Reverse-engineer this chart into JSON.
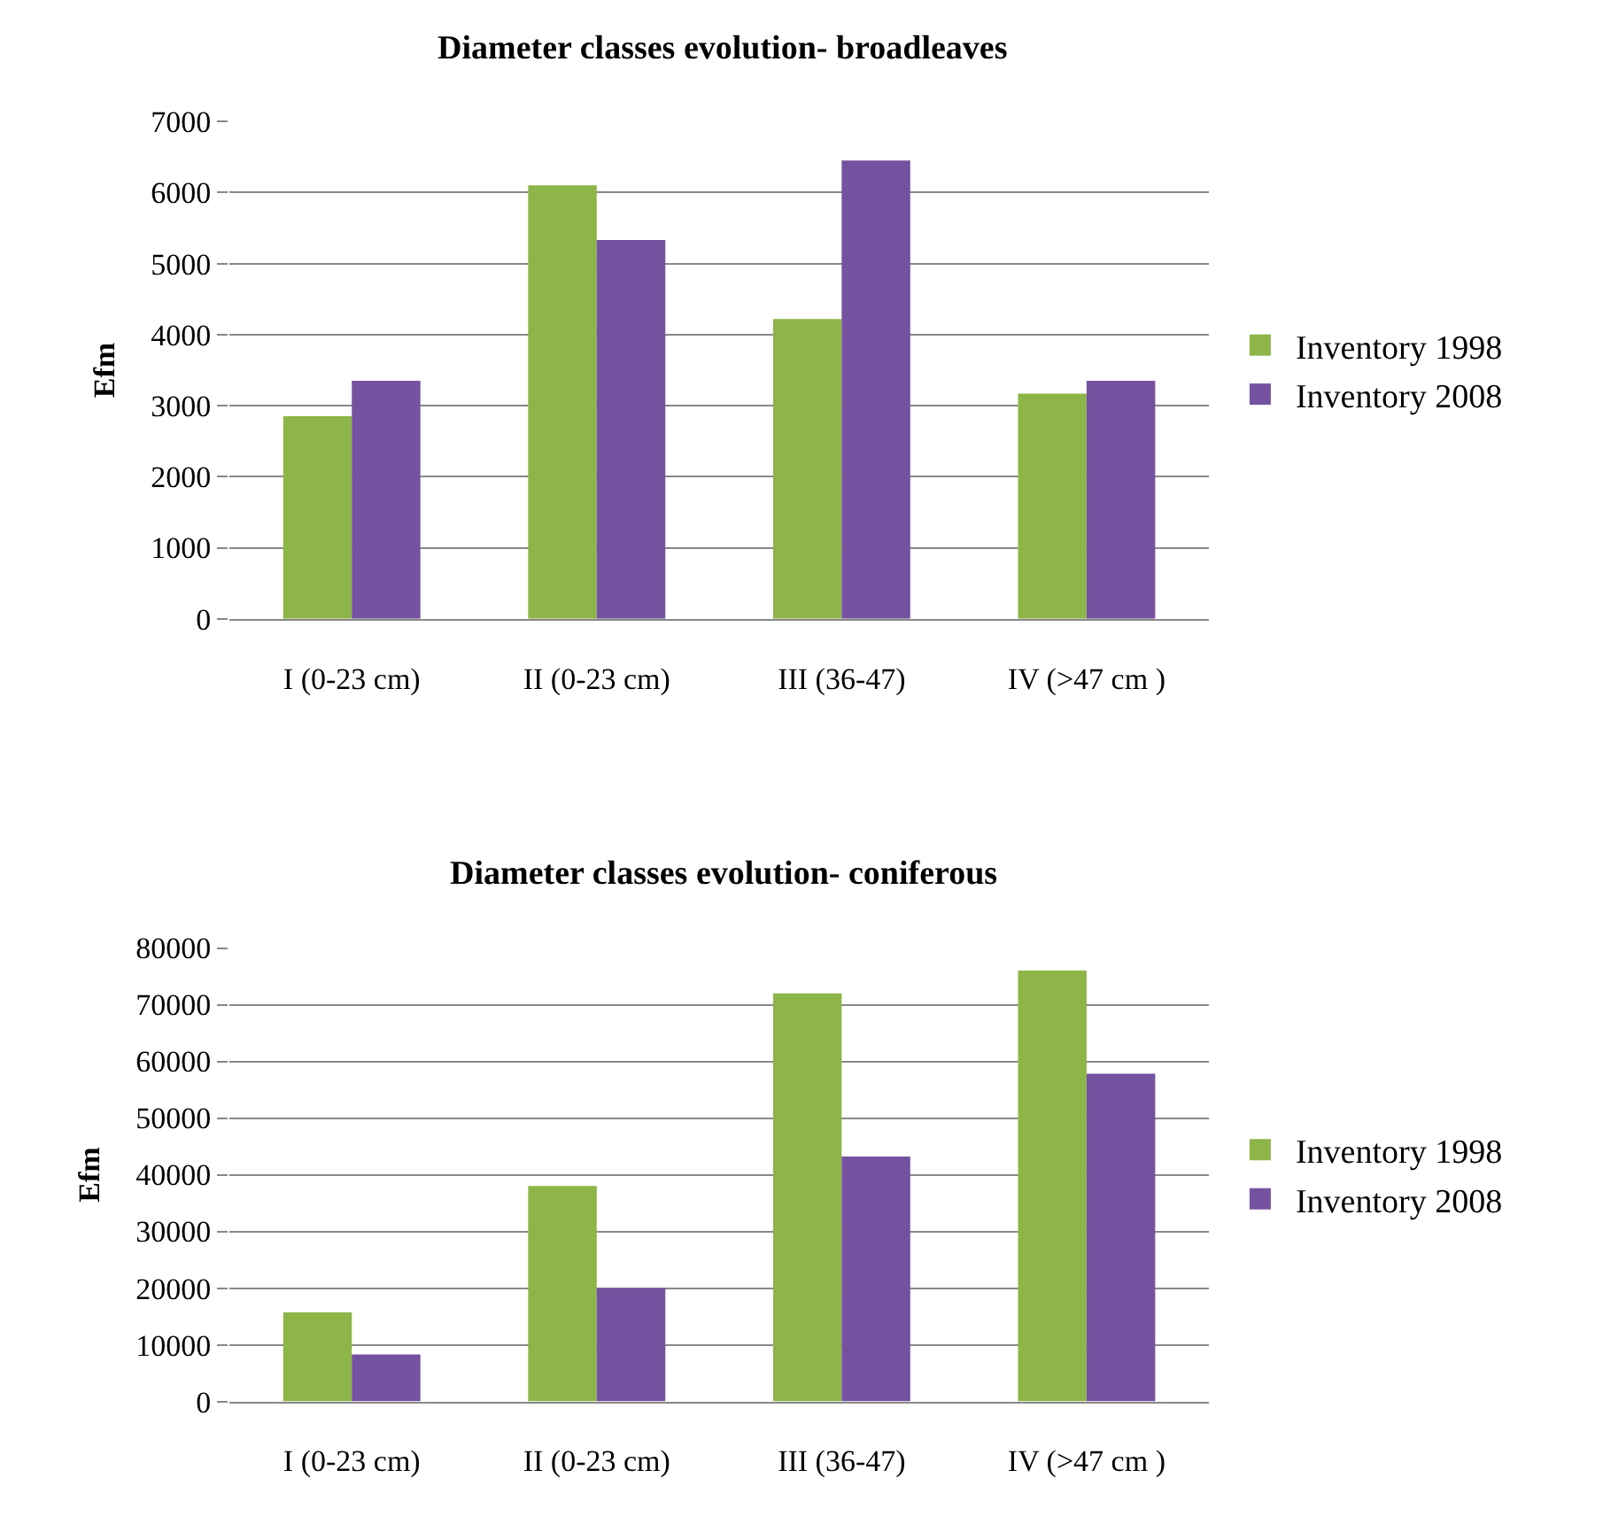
{
  "chart_data": [
    {
      "type": "bar",
      "title": "Diameter classes evolution- broadleaves",
      "ylabel": "Efm",
      "categories": [
        "I (0-23 cm)",
        "II (0-23 cm)",
        "III (36-47)",
        "IV (>47 cm )"
      ],
      "series": [
        {
          "name": "Inventory 1998",
          "color": "#8db548",
          "values": [
            2850,
            6100,
            4220,
            3170
          ]
        },
        {
          "name": "Inventory 2008",
          "color": "#7452a0",
          "values": [
            3350,
            5330,
            6450,
            3350
          ]
        }
      ],
      "ylim": [
        0,
        7000
      ],
      "yticks": [
        0,
        1000,
        2000,
        3000,
        4000,
        5000,
        6000,
        7000
      ],
      "grid": "y",
      "legend": "right"
    },
    {
      "type": "bar",
      "title": "Diameter classes evolution- coniferous",
      "ylabel": "Efm",
      "categories": [
        "I (0-23 cm)",
        "II (0-23 cm)",
        "III (36-47)",
        "IV (>47 cm )"
      ],
      "series": [
        {
          "name": "Inventory 1998",
          "color": "#8db548",
          "values": [
            15700,
            38000,
            72000,
            76000
          ]
        },
        {
          "name": "Inventory 2008",
          "color": "#7452a0",
          "values": [
            8300,
            20000,
            43200,
            57800
          ]
        }
      ],
      "ylim": [
        0,
        80000
      ],
      "yticks": [
        0,
        10000,
        20000,
        30000,
        40000,
        50000,
        60000,
        70000,
        80000
      ],
      "grid": "y",
      "legend": "right"
    }
  ]
}
